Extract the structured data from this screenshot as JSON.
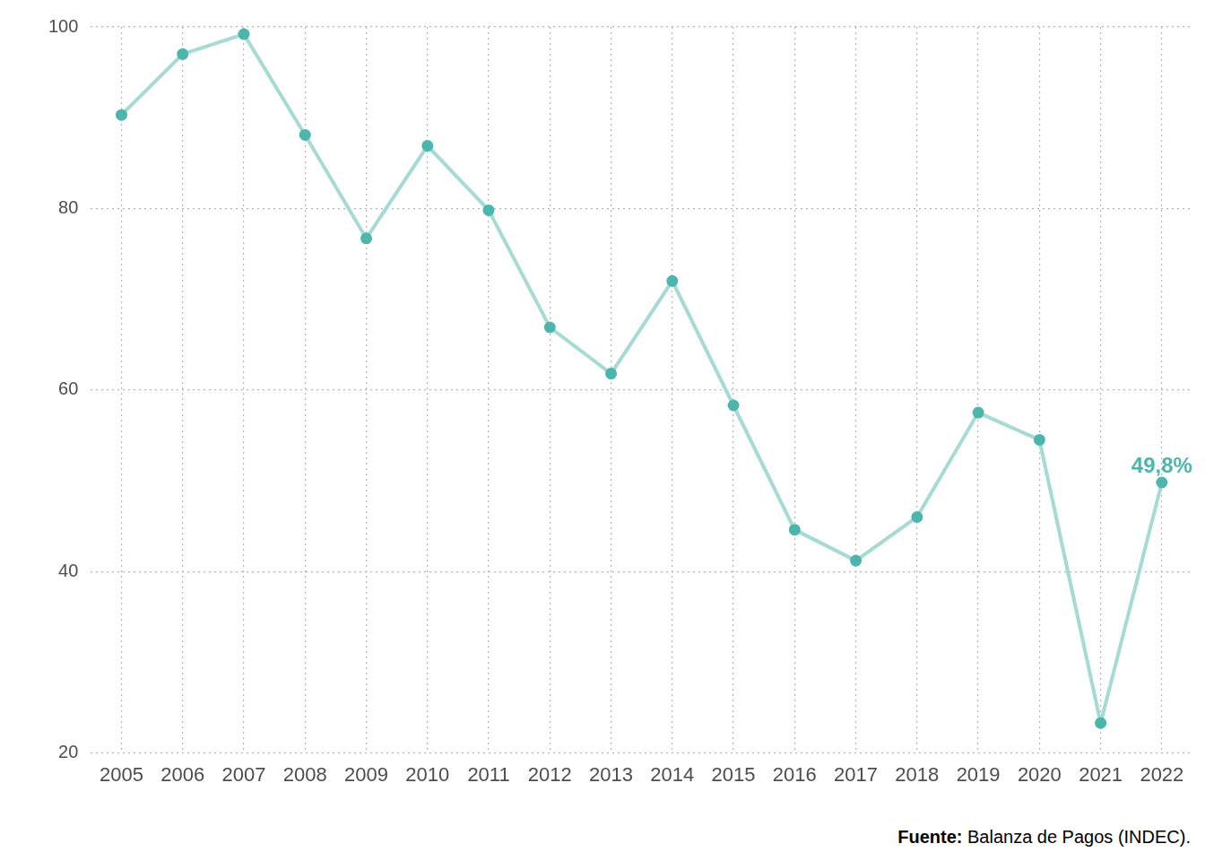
{
  "chart_data": {
    "type": "line",
    "categories": [
      "2005",
      "2006",
      "2007",
      "2008",
      "2009",
      "2010",
      "2011",
      "2012",
      "2013",
      "2014",
      "2015",
      "2016",
      "2017",
      "2018",
      "2019",
      "2020",
      "2021",
      "2022"
    ],
    "values": [
      90.3,
      97.0,
      99.2,
      88.1,
      76.7,
      86.9,
      79.8,
      66.9,
      61.8,
      72.0,
      58.3,
      44.6,
      41.2,
      46.0,
      57.5,
      54.5,
      23.3,
      49.8
    ],
    "value_labels": [
      null,
      null,
      null,
      null,
      null,
      null,
      null,
      null,
      null,
      null,
      null,
      null,
      null,
      null,
      null,
      null,
      null,
      "49,8%"
    ],
    "data_labels": true,
    "color": "#a6dad5",
    "marker": "circle",
    "ylim": [
      20,
      100
    ],
    "yticks": [
      20,
      40,
      60,
      80,
      100
    ],
    "grid": true,
    "source_label": "Fuente:",
    "source": "Balanza de Pagos (INDEC)."
  }
}
